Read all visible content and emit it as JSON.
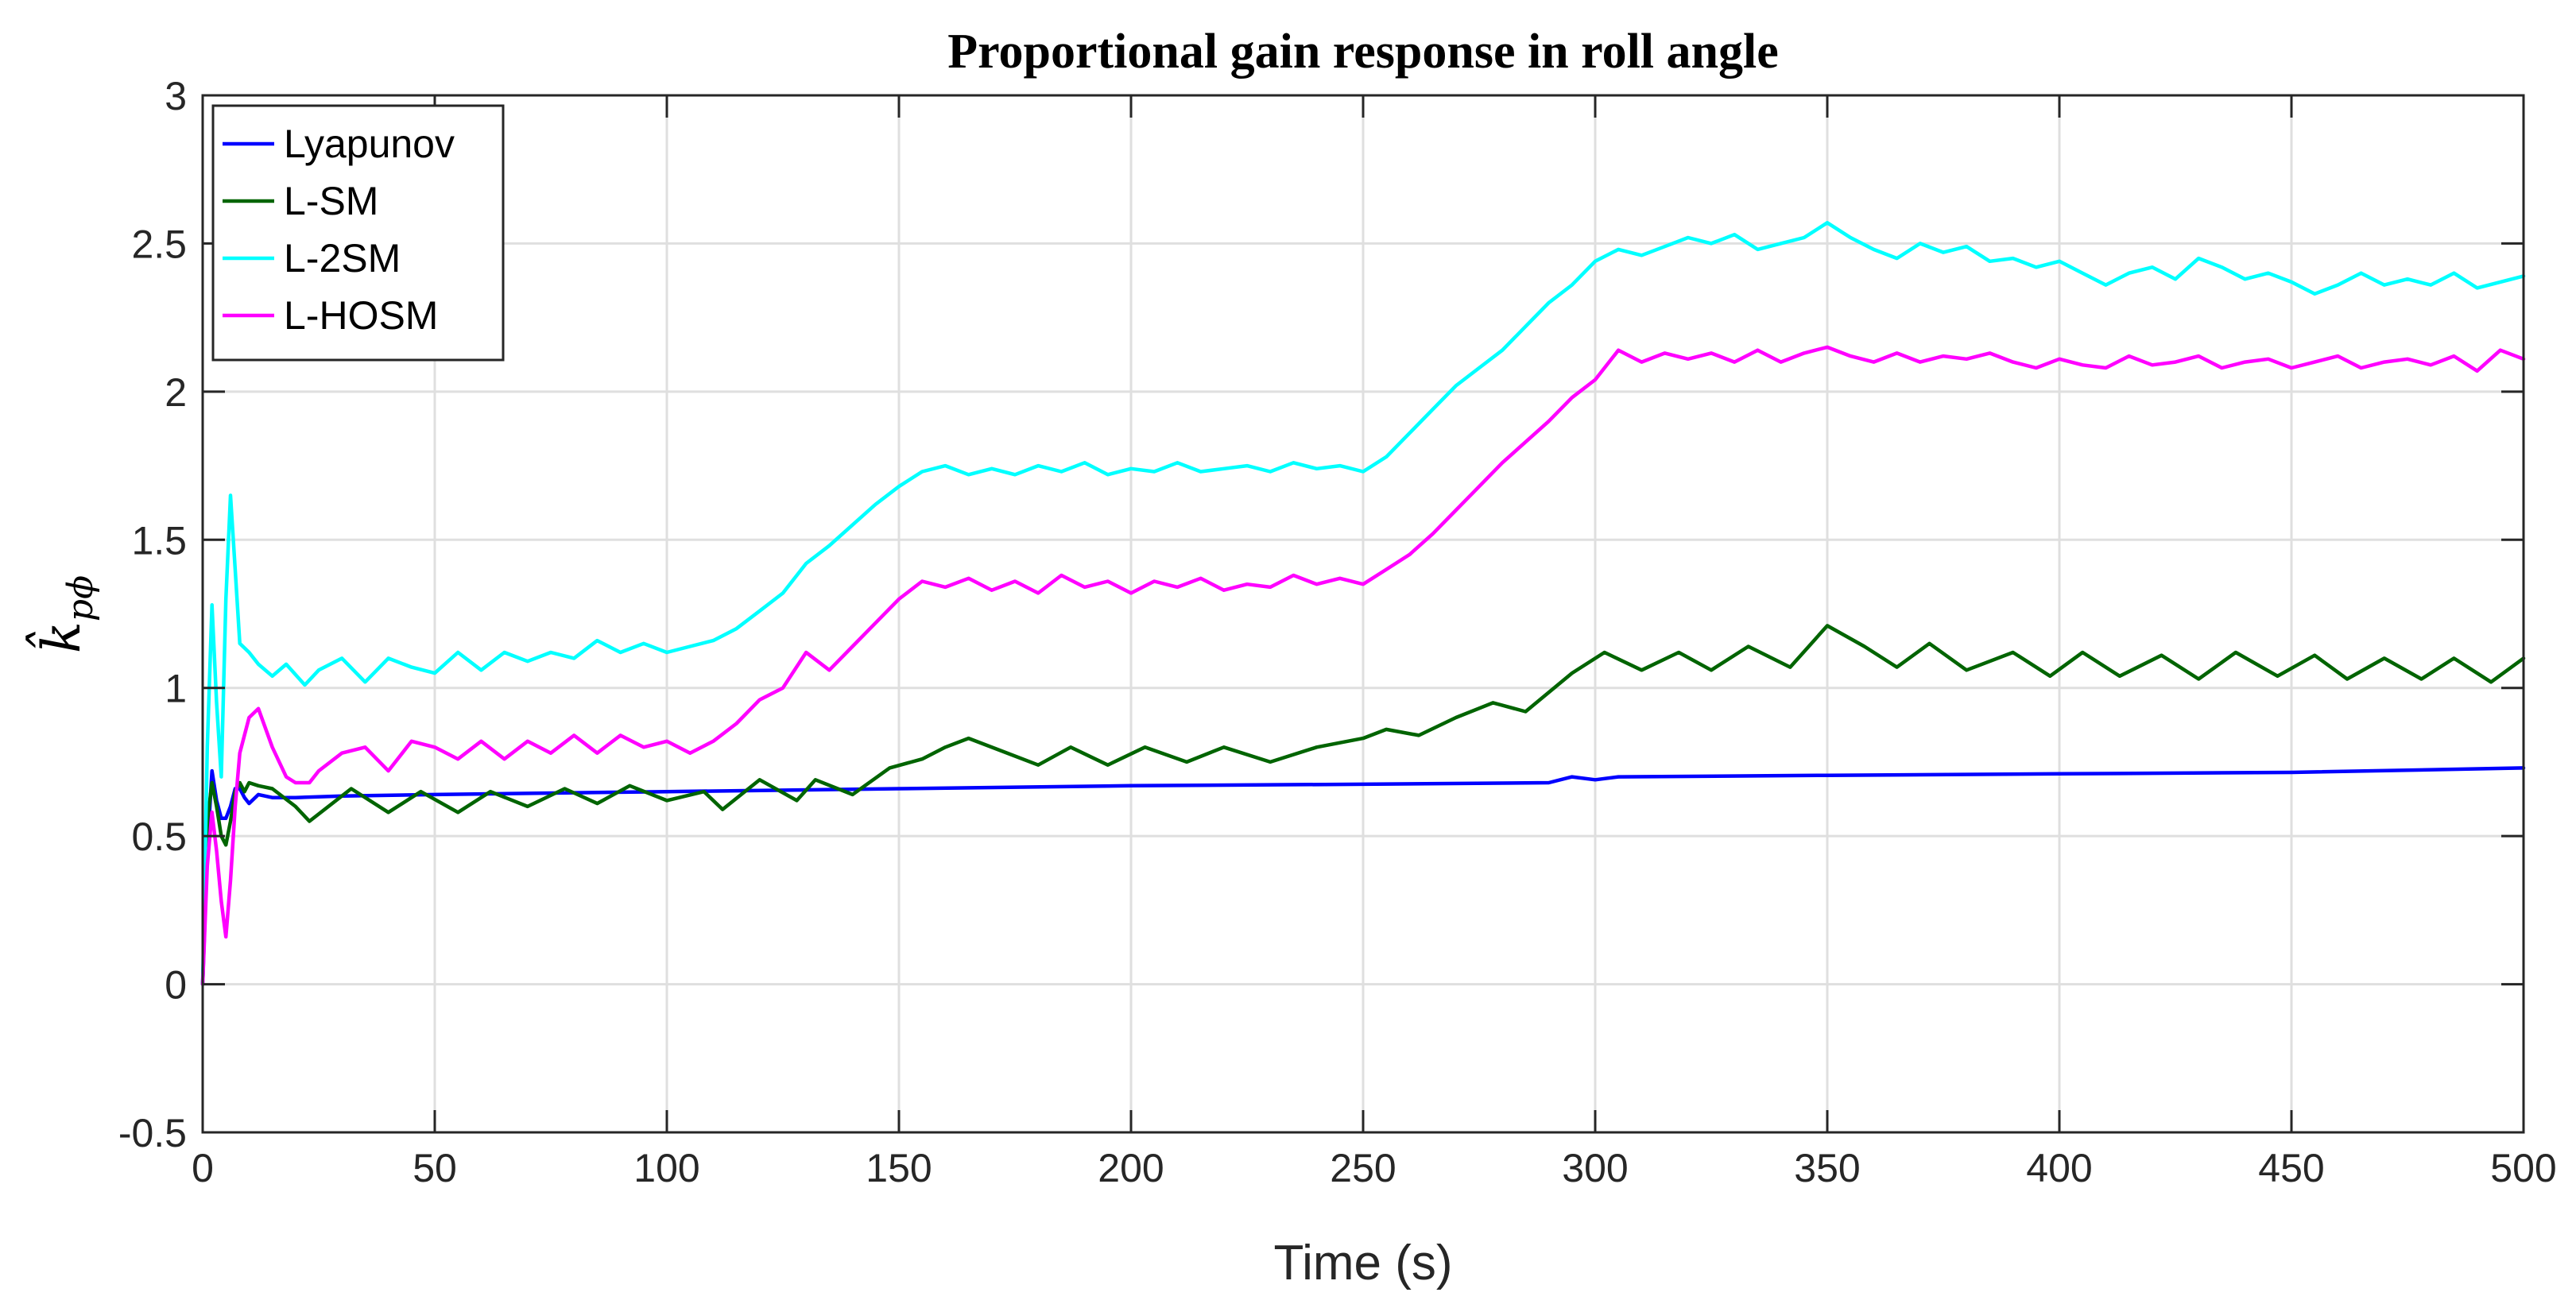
{
  "chart_data": {
    "type": "line",
    "title": "Proportional gain response in roll angle",
    "xlabel": "Time (s)",
    "ylabel": "k̂",
    "ylabel_subscript": "pϕ",
    "xlim": [
      0,
      500
    ],
    "ylim": [
      -0.5,
      3
    ],
    "xticks": [
      0,
      50,
      100,
      150,
      200,
      250,
      300,
      350,
      400,
      450,
      500
    ],
    "yticks": [
      -0.5,
      0,
      0.5,
      1,
      1.5,
      2,
      2.5,
      3
    ],
    "xtick_labels": [
      "0",
      "50",
      "100",
      "150",
      "200",
      "250",
      "300",
      "350",
      "400",
      "450",
      "500"
    ],
    "ytick_labels": [
      "-0.5",
      "0",
      "0.5",
      "1",
      "1.5",
      "2",
      "2.5",
      "3"
    ],
    "grid": true,
    "legend_position": "top-left",
    "series": [
      {
        "name": "Lyapunov",
        "color": "#0000ff",
        "x": [
          0,
          1,
          2,
          3,
          4,
          5,
          6,
          7,
          8,
          9,
          10,
          12,
          15,
          20,
          30,
          50,
          100,
          150,
          200,
          250,
          290,
          295,
          300,
          305,
          350,
          400,
          450,
          500
        ],
        "y": [
          0.0,
          0.45,
          0.72,
          0.62,
          0.56,
          0.56,
          0.6,
          0.66,
          0.66,
          0.63,
          0.61,
          0.64,
          0.63,
          0.63,
          0.635,
          0.64,
          0.65,
          0.66,
          0.67,
          0.675,
          0.68,
          0.7,
          0.69,
          0.7,
          0.705,
          0.71,
          0.715,
          0.73
        ]
      },
      {
        "name": "L-SM",
        "color": "#006400",
        "x": [
          0,
          1,
          2,
          3,
          4,
          5,
          6,
          7,
          8,
          9,
          10,
          12,
          15,
          20,
          23,
          32,
          40,
          47,
          55,
          62,
          70,
          78,
          85,
          92,
          100,
          108,
          112,
          120,
          128,
          132,
          140,
          148,
          155,
          160,
          165,
          180,
          187,
          195,
          203,
          212,
          220,
          230,
          240,
          250,
          255,
          262,
          270,
          278,
          285,
          295,
          302,
          310,
          318,
          325,
          333,
          342,
          350,
          358,
          365,
          372,
          380,
          390,
          398,
          405,
          413,
          422,
          430,
          438,
          447,
          455,
          462,
          470,
          478,
          485,
          493,
          500
        ],
        "y": [
          0.0,
          0.55,
          0.68,
          0.6,
          0.5,
          0.47,
          0.55,
          0.65,
          0.68,
          0.65,
          0.68,
          0.67,
          0.66,
          0.6,
          0.55,
          0.66,
          0.58,
          0.65,
          0.58,
          0.65,
          0.6,
          0.66,
          0.61,
          0.67,
          0.62,
          0.65,
          0.59,
          0.69,
          0.62,
          0.69,
          0.64,
          0.73,
          0.76,
          0.8,
          0.83,
          0.74,
          0.8,
          0.74,
          0.8,
          0.75,
          0.8,
          0.75,
          0.8,
          0.83,
          0.86,
          0.84,
          0.9,
          0.95,
          0.92,
          1.05,
          1.12,
          1.06,
          1.12,
          1.06,
          1.14,
          1.07,
          1.21,
          1.14,
          1.07,
          1.15,
          1.06,
          1.12,
          1.04,
          1.12,
          1.04,
          1.11,
          1.03,
          1.12,
          1.04,
          1.11,
          1.03,
          1.1,
          1.03,
          1.1,
          1.02,
          1.1
        ]
      },
      {
        "name": "L-2SM",
        "color": "#00ffff",
        "x": [
          0,
          1,
          2,
          3,
          4,
          5,
          6,
          7,
          8,
          10,
          12,
          15,
          18,
          22,
          25,
          30,
          35,
          40,
          45,
          50,
          55,
          60,
          65,
          70,
          75,
          80,
          85,
          90,
          95,
          100,
          105,
          110,
          115,
          120,
          125,
          130,
          135,
          140,
          145,
          150,
          155,
          160,
          165,
          170,
          175,
          180,
          185,
          190,
          195,
          200,
          205,
          210,
          215,
          220,
          225,
          230,
          235,
          240,
          245,
          250,
          255,
          260,
          265,
          270,
          275,
          280,
          285,
          290,
          295,
          300,
          305,
          310,
          315,
          320,
          325,
          330,
          335,
          340,
          345,
          350,
          355,
          360,
          365,
          370,
          375,
          380,
          385,
          390,
          395,
          400,
          405,
          410,
          415,
          420,
          425,
          430,
          435,
          440,
          445,
          450,
          455,
          460,
          465,
          470,
          475,
          480,
          485,
          490,
          495,
          500
        ],
        "y": [
          0.0,
          0.8,
          1.28,
          0.95,
          0.7,
          1.3,
          1.65,
          1.4,
          1.15,
          1.12,
          1.08,
          1.04,
          1.08,
          1.01,
          1.06,
          1.1,
          1.02,
          1.1,
          1.07,
          1.05,
          1.12,
          1.06,
          1.12,
          1.09,
          1.12,
          1.1,
          1.16,
          1.12,
          1.15,
          1.12,
          1.14,
          1.16,
          1.2,
          1.26,
          1.32,
          1.42,
          1.48,
          1.55,
          1.62,
          1.68,
          1.73,
          1.75,
          1.72,
          1.74,
          1.72,
          1.75,
          1.73,
          1.76,
          1.72,
          1.74,
          1.73,
          1.76,
          1.73,
          1.74,
          1.75,
          1.73,
          1.76,
          1.74,
          1.75,
          1.73,
          1.78,
          1.86,
          1.94,
          2.02,
          2.08,
          2.14,
          2.22,
          2.3,
          2.36,
          2.44,
          2.48,
          2.46,
          2.49,
          2.52,
          2.5,
          2.53,
          2.48,
          2.5,
          2.52,
          2.57,
          2.52,
          2.48,
          2.45,
          2.5,
          2.47,
          2.49,
          2.44,
          2.45,
          2.42,
          2.44,
          2.4,
          2.36,
          2.4,
          2.42,
          2.38,
          2.45,
          2.42,
          2.38,
          2.4,
          2.37,
          2.33,
          2.36,
          2.4,
          2.36,
          2.38,
          2.36,
          2.4,
          2.35,
          2.37,
          2.39
        ]
      },
      {
        "name": "L-HOSM",
        "color": "#ff00ff",
        "x": [
          0,
          1,
          2,
          3,
          4,
          5,
          6,
          7,
          8,
          10,
          12,
          15,
          18,
          20,
          23,
          25,
          30,
          35,
          40,
          45,
          50,
          55,
          60,
          65,
          70,
          75,
          80,
          85,
          90,
          95,
          100,
          105,
          110,
          115,
          120,
          125,
          130,
          135,
          140,
          145,
          150,
          155,
          160,
          165,
          170,
          175,
          180,
          185,
          190,
          195,
          200,
          205,
          210,
          215,
          220,
          225,
          230,
          235,
          240,
          245,
          250,
          255,
          260,
          265,
          270,
          275,
          280,
          285,
          290,
          295,
          300,
          305,
          310,
          315,
          320,
          325,
          330,
          335,
          340,
          345,
          350,
          355,
          360,
          365,
          370,
          375,
          380,
          385,
          390,
          395,
          400,
          405,
          410,
          415,
          420,
          425,
          430,
          435,
          440,
          445,
          450,
          455,
          460,
          465,
          470,
          475,
          480,
          485,
          490,
          495,
          500
        ],
        "y": [
          0.0,
          0.4,
          0.58,
          0.45,
          0.28,
          0.16,
          0.35,
          0.6,
          0.78,
          0.9,
          0.93,
          0.8,
          0.7,
          0.68,
          0.68,
          0.72,
          0.78,
          0.8,
          0.72,
          0.82,
          0.8,
          0.76,
          0.82,
          0.76,
          0.82,
          0.78,
          0.84,
          0.78,
          0.84,
          0.8,
          0.82,
          0.78,
          0.82,
          0.88,
          0.96,
          1.0,
          1.12,
          1.06,
          1.14,
          1.22,
          1.3,
          1.36,
          1.34,
          1.37,
          1.33,
          1.36,
          1.32,
          1.38,
          1.34,
          1.36,
          1.32,
          1.36,
          1.34,
          1.37,
          1.33,
          1.35,
          1.34,
          1.38,
          1.35,
          1.37,
          1.35,
          1.4,
          1.45,
          1.52,
          1.6,
          1.68,
          1.76,
          1.83,
          1.9,
          1.98,
          2.04,
          2.14,
          2.1,
          2.13,
          2.11,
          2.13,
          2.1,
          2.14,
          2.1,
          2.13,
          2.15,
          2.12,
          2.1,
          2.13,
          2.1,
          2.12,
          2.11,
          2.13,
          2.1,
          2.08,
          2.11,
          2.09,
          2.08,
          2.12,
          2.09,
          2.1,
          2.12,
          2.08,
          2.1,
          2.11,
          2.08,
          2.1,
          2.12,
          2.08,
          2.1,
          2.11,
          2.09,
          2.12,
          2.07,
          2.14,
          2.11
        ]
      }
    ]
  }
}
